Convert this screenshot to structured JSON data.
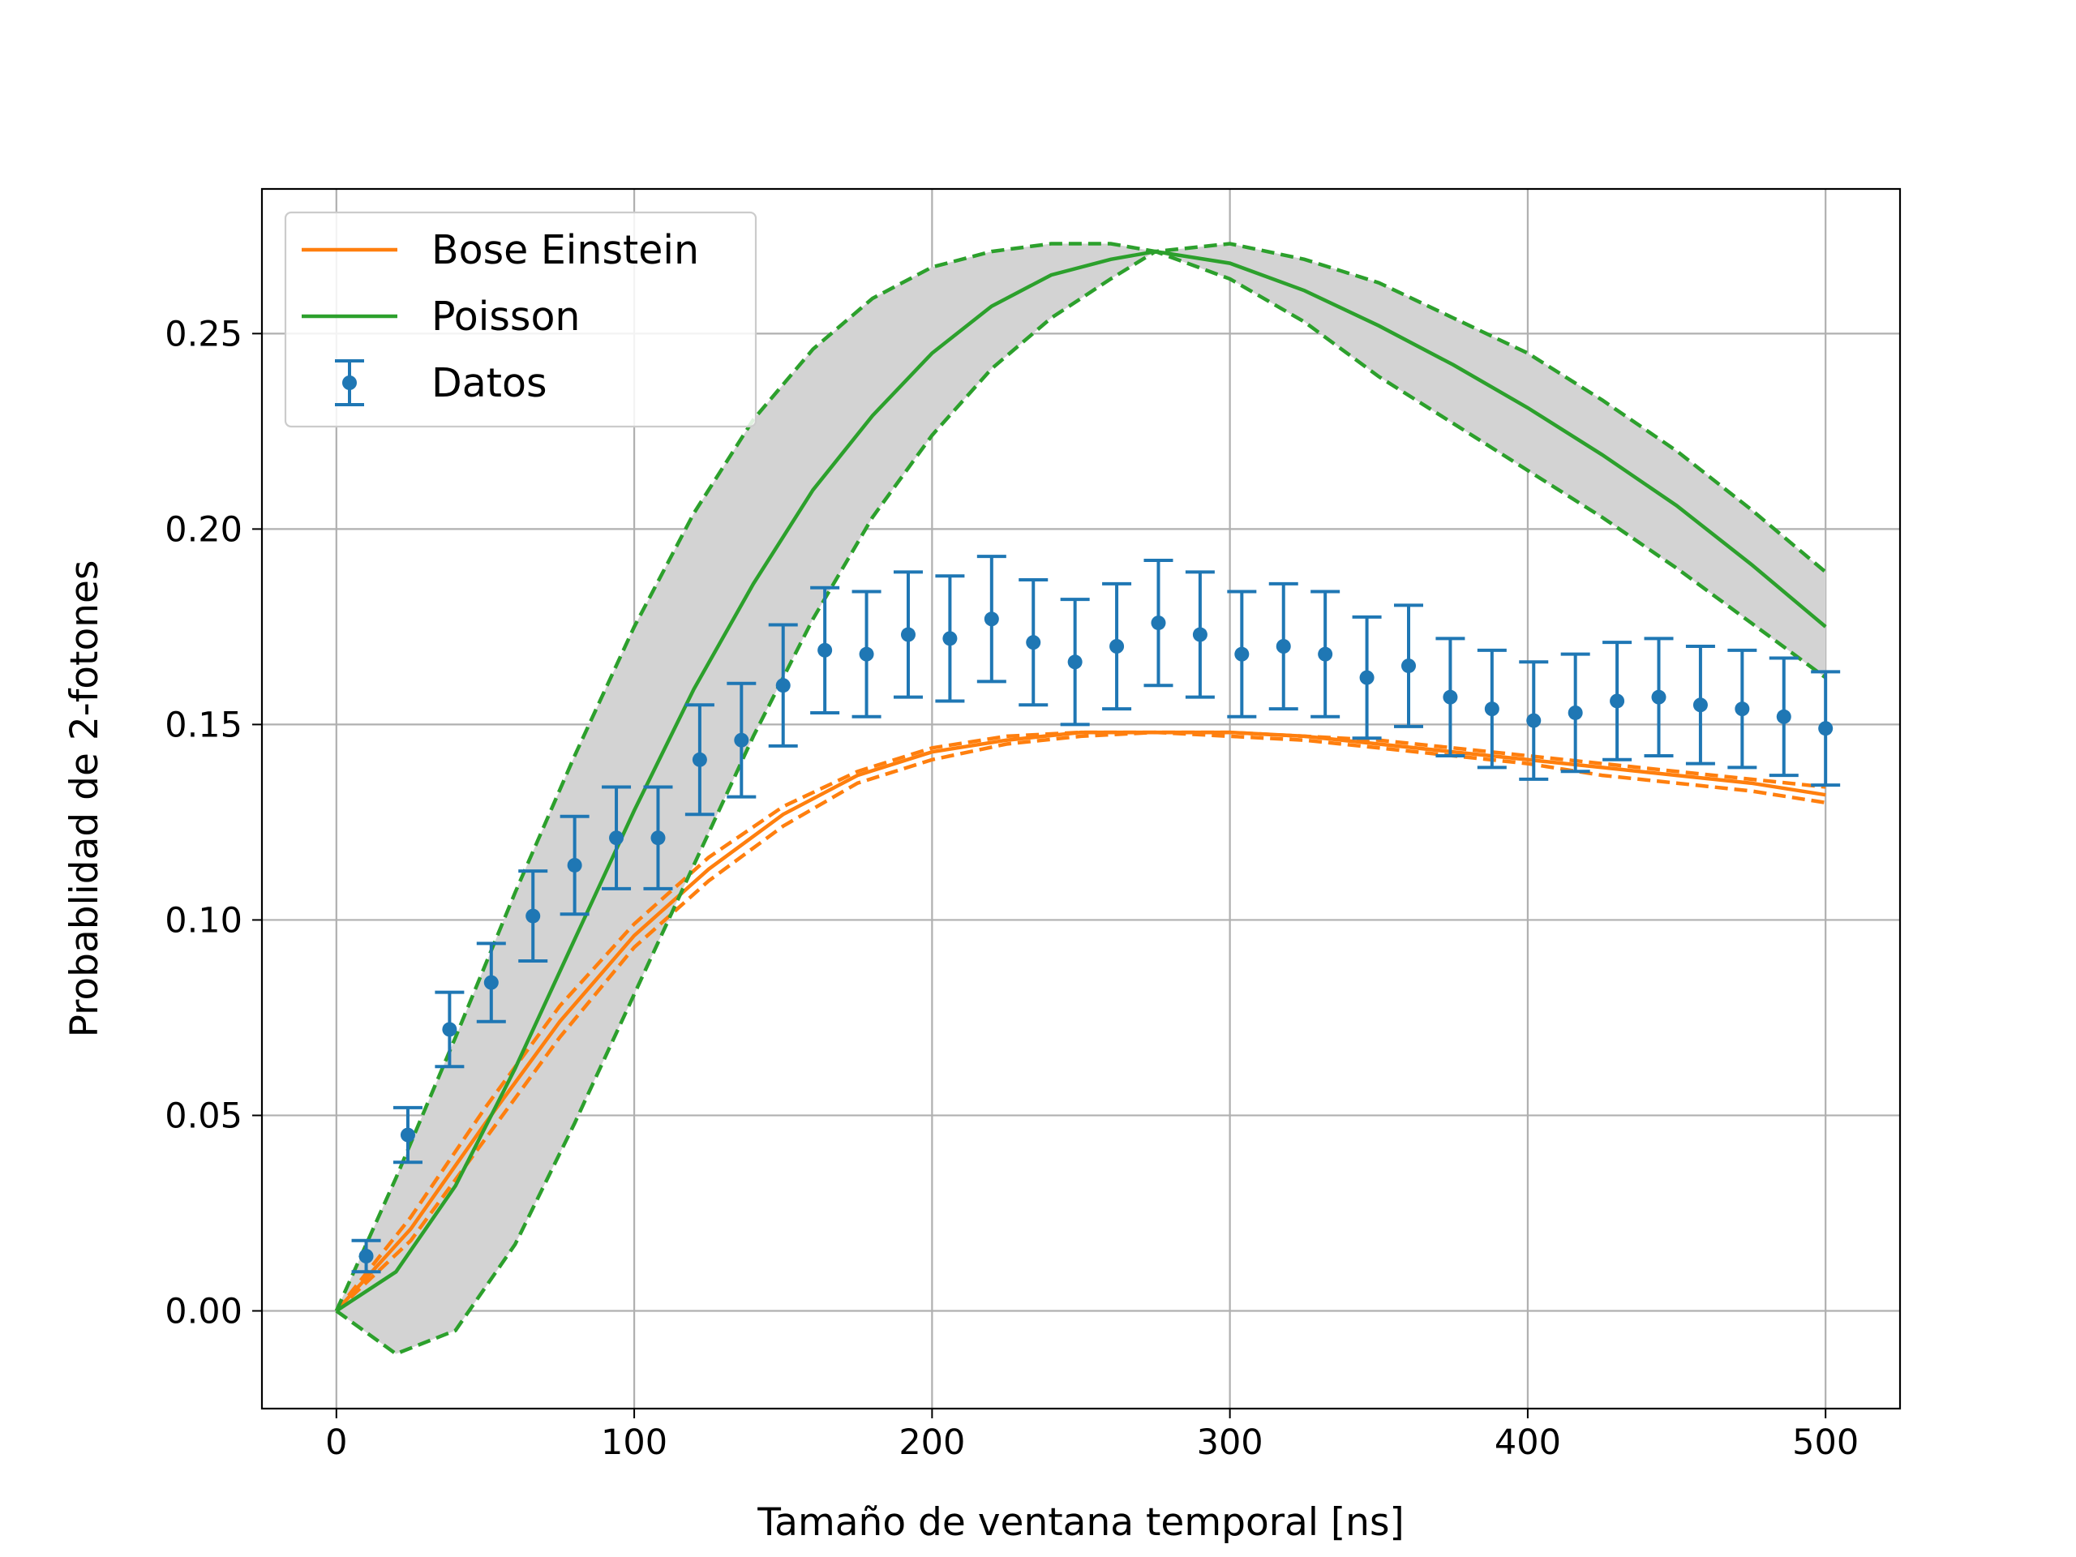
{
  "chart_data": {
    "type": "line",
    "xlabel": "Tamaño de ventana temporal [ns]",
    "ylabel": "Probablidad de 2-fotones",
    "xlim": [
      -25,
      525
    ],
    "ylim": [
      -0.025,
      0.287
    ],
    "xticks": [
      0,
      100,
      200,
      300,
      400,
      500
    ],
    "xtick_labels": [
      "0",
      "100",
      "200",
      "300",
      "400",
      "500"
    ],
    "yticks": [
      0.0,
      0.05,
      0.1,
      0.15,
      0.2,
      0.25
    ],
    "ytick_labels": [
      "0.00",
      "0.05",
      "0.10",
      "0.15",
      "0.20",
      "0.25"
    ],
    "grid": true,
    "legend_position": "upper-left",
    "legend": [
      "Bose Einstein",
      "Poisson",
      "Datos"
    ],
    "colors": {
      "bose": "#ff7f0e",
      "poisson": "#2ca02c",
      "datos": "#1f77b4",
      "band": "#d3d3d3"
    },
    "series": [
      {
        "name": "Bose Einstein",
        "kind": "line",
        "x": [
          0,
          25,
          50,
          75,
          100,
          125,
          150,
          175,
          200,
          225,
          250,
          275,
          300,
          325,
          350,
          375,
          400,
          425,
          450,
          475,
          500
        ],
        "y": [
          0.0,
          0.021,
          0.048,
          0.074,
          0.096,
          0.113,
          0.127,
          0.137,
          0.143,
          0.146,
          0.148,
          0.148,
          0.148,
          0.147,
          0.145,
          0.143,
          0.141,
          0.139,
          0.137,
          0.135,
          0.132
        ],
        "upper": [
          0.0,
          0.024,
          0.052,
          0.078,
          0.099,
          0.116,
          0.129,
          0.138,
          0.144,
          0.147,
          0.148,
          0.148,
          0.148,
          0.147,
          0.146,
          0.144,
          0.142,
          0.14,
          0.138,
          0.136,
          0.134
        ],
        "lower": [
          0.0,
          0.018,
          0.044,
          0.07,
          0.093,
          0.11,
          0.124,
          0.135,
          0.141,
          0.145,
          0.147,
          0.148,
          0.147,
          0.146,
          0.144,
          0.142,
          0.14,
          0.137,
          0.135,
          0.133,
          0.13
        ]
      },
      {
        "name": "Poisson",
        "kind": "line",
        "x": [
          0,
          20,
          40,
          60,
          80,
          100,
          120,
          140,
          160,
          180,
          200,
          220,
          240,
          260,
          275,
          300,
          325,
          350,
          375,
          400,
          425,
          450,
          475,
          500
        ],
        "y": [
          0.0,
          0.01,
          0.032,
          0.062,
          0.095,
          0.128,
          0.159,
          0.186,
          0.21,
          0.229,
          0.245,
          0.257,
          0.265,
          0.269,
          0.271,
          0.268,
          0.261,
          0.252,
          0.242,
          0.231,
          0.219,
          0.206,
          0.191,
          0.175
        ],
        "upper": [
          0.0,
          0.034,
          0.07,
          0.107,
          0.142,
          0.175,
          0.204,
          0.228,
          0.246,
          0.259,
          0.267,
          0.271,
          0.273,
          0.273,
          0.271,
          0.273,
          0.269,
          0.263,
          0.254,
          0.245,
          0.233,
          0.22,
          0.205,
          0.189
        ],
        "lower": [
          0.0,
          -0.011,
          -0.005,
          0.017,
          0.048,
          0.081,
          0.114,
          0.147,
          0.177,
          0.203,
          0.224,
          0.241,
          0.254,
          0.264,
          0.271,
          0.264,
          0.253,
          0.239,
          0.227,
          0.215,
          0.203,
          0.19,
          0.176,
          0.162
        ]
      },
      {
        "name": "Datos",
        "kind": "errorbar",
        "x": [
          10,
          24,
          38,
          52,
          66,
          80,
          94,
          108,
          122,
          136,
          150,
          164,
          178,
          192,
          206,
          220,
          234,
          248,
          262,
          276,
          290,
          304,
          318,
          332,
          346,
          360,
          374,
          388,
          402,
          416,
          430,
          444,
          458,
          472,
          486,
          500
        ],
        "y": [
          0.014,
          0.045,
          0.072,
          0.084,
          0.101,
          0.114,
          0.121,
          0.121,
          0.141,
          0.146,
          0.16,
          0.169,
          0.168,
          0.173,
          0.172,
          0.177,
          0.171,
          0.166,
          0.17,
          0.176,
          0.173,
          0.168,
          0.17,
          0.168,
          0.162,
          0.165,
          0.157,
          0.154,
          0.151,
          0.153,
          0.156,
          0.157,
          0.155,
          0.154,
          0.152,
          0.149
        ],
        "yerr": [
          0.004,
          0.007,
          0.0095,
          0.01,
          0.0115,
          0.0125,
          0.013,
          0.013,
          0.014,
          0.0145,
          0.0155,
          0.016,
          0.016,
          0.016,
          0.016,
          0.016,
          0.016,
          0.016,
          0.016,
          0.016,
          0.016,
          0.016,
          0.016,
          0.016,
          0.0155,
          0.0155,
          0.015,
          0.015,
          0.015,
          0.015,
          0.015,
          0.015,
          0.015,
          0.015,
          0.015,
          0.0145
        ]
      }
    ]
  }
}
